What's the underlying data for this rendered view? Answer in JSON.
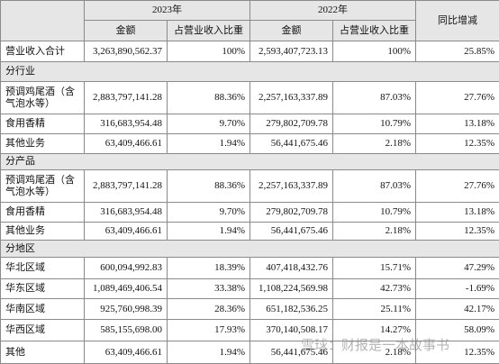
{
  "header": {
    "year_a": "2023年",
    "year_b": "2022年",
    "yoy": "同比增减",
    "amount_a": "金额",
    "share_a": "占营业收入比重",
    "amount_b": "金额",
    "share_b": "占营业收入比重"
  },
  "rows": [
    {
      "label": "营业收入合计",
      "cells": [
        "3,263,890,562.37",
        "100%",
        "2,593,407,723.13",
        "100%",
        "25.85%"
      ]
    },
    {
      "section": "分行业"
    },
    {
      "label": "预调鸡尾酒（含气泡水等）",
      "cells": [
        "2,883,797,141.28",
        "88.36%",
        "2,257,163,337.89",
        "87.03%",
        "27.76%"
      ]
    },
    {
      "label": "食用香精",
      "cells": [
        "316,683,954.48",
        "9.70%",
        "279,802,709.78",
        "10.79%",
        "13.18%"
      ]
    },
    {
      "label": "其他业务",
      "cells": [
        "63,409,466.61",
        "1.94%",
        "56,441,675.46",
        "2.18%",
        "12.35%"
      ]
    },
    {
      "section": "分产品"
    },
    {
      "label": "预调鸡尾酒（含气泡水等）",
      "cells": [
        "2,883,797,141.28",
        "88.36%",
        "2,257,163,337.89",
        "87.03%",
        "27.76%"
      ]
    },
    {
      "label": "食用香精",
      "cells": [
        "316,683,954.48",
        "9.70%",
        "279,802,709.78",
        "10.79%",
        "13.18%"
      ]
    },
    {
      "label": "其他业务",
      "cells": [
        "63,409,466.61",
        "1.94%",
        "56,441,675.46",
        "2.18%",
        "12.35%"
      ]
    },
    {
      "section": "分地区"
    },
    {
      "label": "华北区域",
      "cells": [
        "600,094,992.83",
        "18.39%",
        "407,418,432.76",
        "15.71%",
        "47.29%"
      ]
    },
    {
      "label": "华东区域",
      "cells": [
        "1,089,469,406.54",
        "33.38%",
        "1,108,224,569.98",
        "42.73%",
        "-1.69%"
      ]
    },
    {
      "label": "华南区域",
      "cells": [
        "925,760,998.39",
        "28.36%",
        "651,182,536.25",
        "25.11%",
        "42.17%"
      ]
    },
    {
      "label": "华西区域",
      "cells": [
        "585,155,698.00",
        "17.93%",
        "370,140,508.17",
        "14.27%",
        "58.09%"
      ]
    },
    {
      "label": "其他",
      "cells": [
        "63,409,466.61",
        "1.94%",
        "56,441,675.46",
        "2.18%",
        "12.35%"
      ]
    }
  ],
  "watermark": "雪球：财报是一本故事书"
}
